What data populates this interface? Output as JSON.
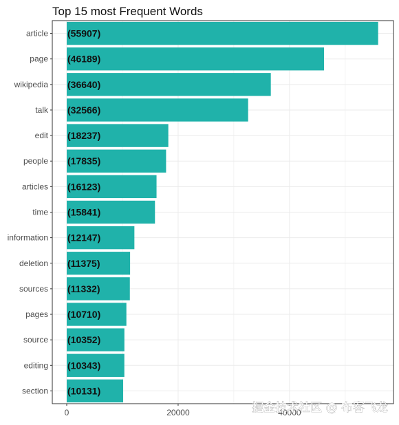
{
  "chart_data": {
    "type": "bar",
    "orientation": "horizontal",
    "title": "Top 15 most Frequent Words",
    "xlabel": "",
    "ylabel": "",
    "categories": [
      "article",
      "page",
      "wikipedia",
      "talk",
      "edit",
      "people",
      "articles",
      "time",
      "information",
      "deletion",
      "sources",
      "pages",
      "source",
      "editing",
      "section"
    ],
    "values": [
      55907,
      46189,
      36640,
      32566,
      18237,
      17835,
      16123,
      15841,
      12147,
      11375,
      11332,
      10710,
      10352,
      10343,
      10131
    ],
    "data_labels": [
      "(55907)",
      "(46189)",
      "(36640)",
      "(32566)",
      "(18237)",
      "(17835)",
      "(16123)",
      "(15841)",
      "(12147)",
      "(11375)",
      "(11332)",
      "(10710)",
      "(10352)",
      "(10343)",
      "(10131)"
    ],
    "x_ticks": [
      0,
      20000,
      40000
    ],
    "x_tick_labels": [
      "0",
      "20000",
      "40000"
    ],
    "xlim": [
      0,
      58700
    ],
    "grid": true,
    "bar_color": "#20b2aa",
    "panel_border_color": "#333333",
    "grid_color": "#ebebeb"
  },
  "watermark": "掘金技术社区 @ 布客飞龙"
}
